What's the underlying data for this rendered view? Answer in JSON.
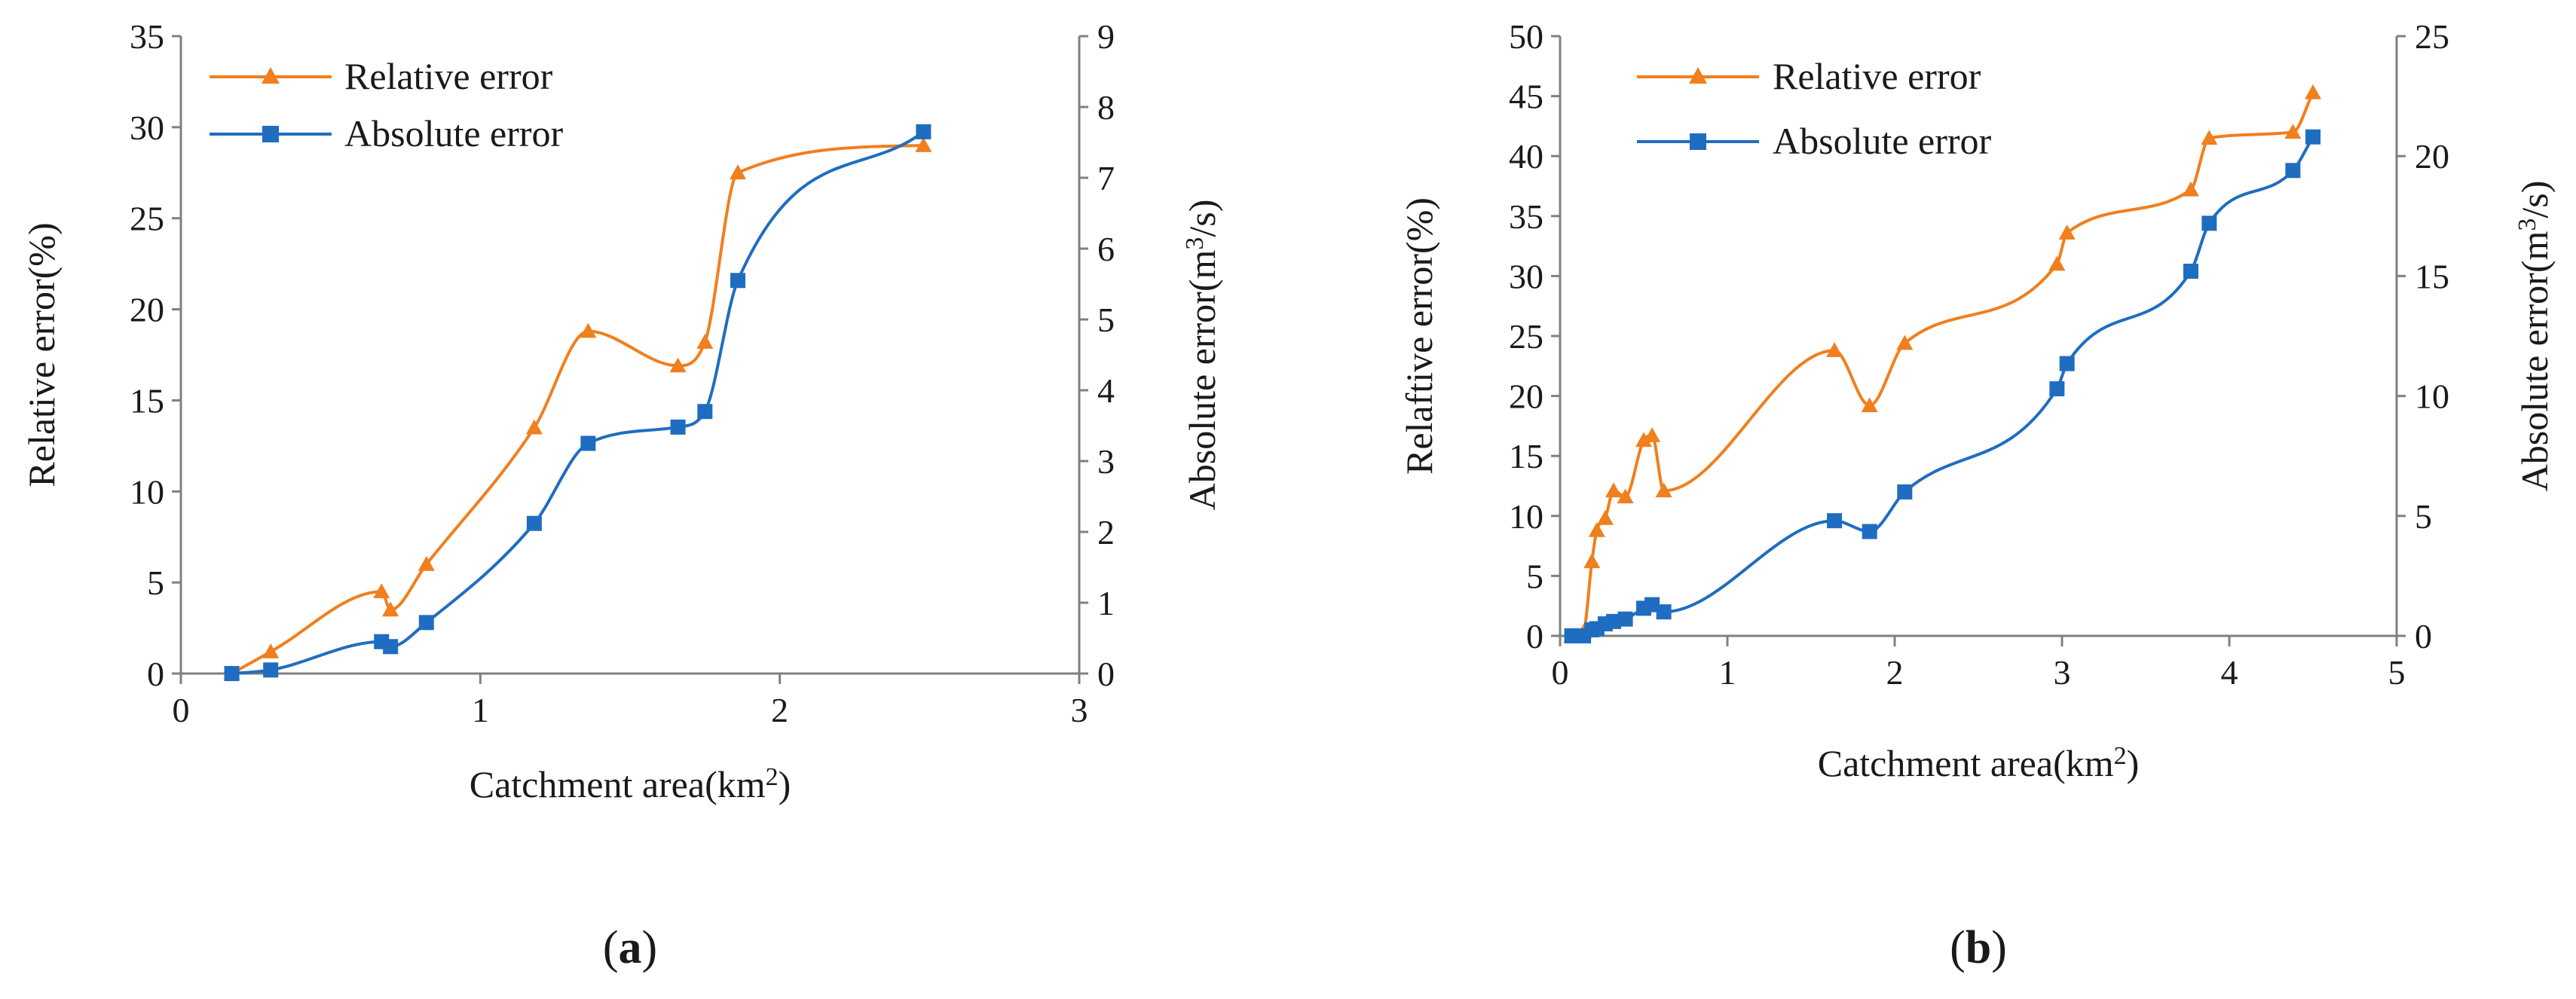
{
  "colors": {
    "relative": "#f07f1e",
    "absolute": "#1f6dc0"
  },
  "chart_data": [
    {
      "type": "line",
      "panel_label": "a",
      "xlabel": "Catchment area(km",
      "xlabel_sup": "2",
      "xlabel_end": ")",
      "ylabel": "Relative error(%)",
      "y2label": "Absolute error(m",
      "y2label_sup": "3",
      "y2label_end": "/s)",
      "xlim": [
        0,
        3
      ],
      "ylim": [
        0,
        35
      ],
      "y2lim": [
        0,
        9
      ],
      "xticks": [
        "0",
        "1",
        "2",
        "3"
      ],
      "yticks": [
        "0",
        "5",
        "10",
        "15",
        "20",
        "25",
        "30",
        "35"
      ],
      "y2ticks": [
        "0",
        "1",
        "2",
        "3",
        "4",
        "5",
        "6",
        "7",
        "8",
        "9"
      ],
      "legend_position": "top-left",
      "series": [
        {
          "name": "Relative error",
          "axis": "left",
          "marker": "triangle",
          "x": [
            0.17,
            0.3,
            0.67,
            0.7,
            0.82,
            1.18,
            1.36,
            1.66,
            1.75,
            1.86,
            2.48
          ],
          "y": [
            0,
            1.2,
            4.5,
            3.5,
            6,
            13.5,
            18.8,
            16.9,
            18.2,
            27.5,
            29
          ]
        },
        {
          "name": "Absolute error",
          "axis": "right",
          "marker": "square",
          "x": [
            0.17,
            0.3,
            0.67,
            0.7,
            0.82,
            1.18,
            1.36,
            1.66,
            1.75,
            1.86,
            2.48
          ],
          "y": [
            0,
            0.05,
            0.45,
            0.38,
            0.72,
            2.12,
            3.25,
            3.48,
            3.7,
            5.55,
            7.65
          ]
        }
      ]
    },
    {
      "type": "line",
      "panel_label": "b",
      "xlabel": "Catchment area(km",
      "xlabel_sup": "2",
      "xlabel_end": ")",
      "ylabel": "Relaftive error(%)",
      "y2label": "Absolute error(m",
      "y2label_sup": "3",
      "y2label_end": "/s)",
      "xlim": [
        0,
        5
      ],
      "ylim": [
        0,
        50
      ],
      "y2lim": [
        0,
        25
      ],
      "xticks": [
        "0",
        "1",
        "2",
        "3",
        "4",
        "5"
      ],
      "yticks": [
        "0",
        "5",
        "10",
        "15",
        "20",
        "25",
        "30",
        "35",
        "40",
        "45",
        "50"
      ],
      "y2ticks": [
        "0",
        "5",
        "10",
        "15",
        "20",
        "25"
      ],
      "legend_position": "top-left",
      "series": [
        {
          "name": "Relative error",
          "axis": "left",
          "marker": "triangle",
          "x": [
            0.07,
            0.1,
            0.14,
            0.19,
            0.22,
            0.27,
            0.32,
            0.39,
            0.5,
            0.55,
            0.62,
            1.64,
            1.85,
            2.06,
            2.97,
            3.03,
            3.77,
            3.88,
            4.38,
            4.5
          ],
          "y": [
            0,
            0,
            0.3,
            6.2,
            8.8,
            9.8,
            12.1,
            11.6,
            16.3,
            16.7,
            12.1,
            23.8,
            19.2,
            24.4,
            31,
            33.6,
            37.2,
            41.5,
            42,
            45.3
          ]
        },
        {
          "name": "Absolute error",
          "axis": "right",
          "marker": "square",
          "x": [
            0.07,
            0.1,
            0.14,
            0.19,
            0.22,
            0.27,
            0.32,
            0.39,
            0.5,
            0.55,
            0.62,
            1.64,
            1.85,
            2.06,
            2.97,
            3.03,
            3.77,
            3.88,
            4.38,
            4.5
          ],
          "y": [
            0,
            0,
            0,
            0.25,
            0.3,
            0.5,
            0.6,
            0.7,
            1.15,
            1.3,
            1.0,
            4.8,
            4.35,
            6.0,
            10.3,
            11.35,
            15.2,
            17.2,
            19.4,
            20.8
          ]
        }
      ]
    }
  ]
}
